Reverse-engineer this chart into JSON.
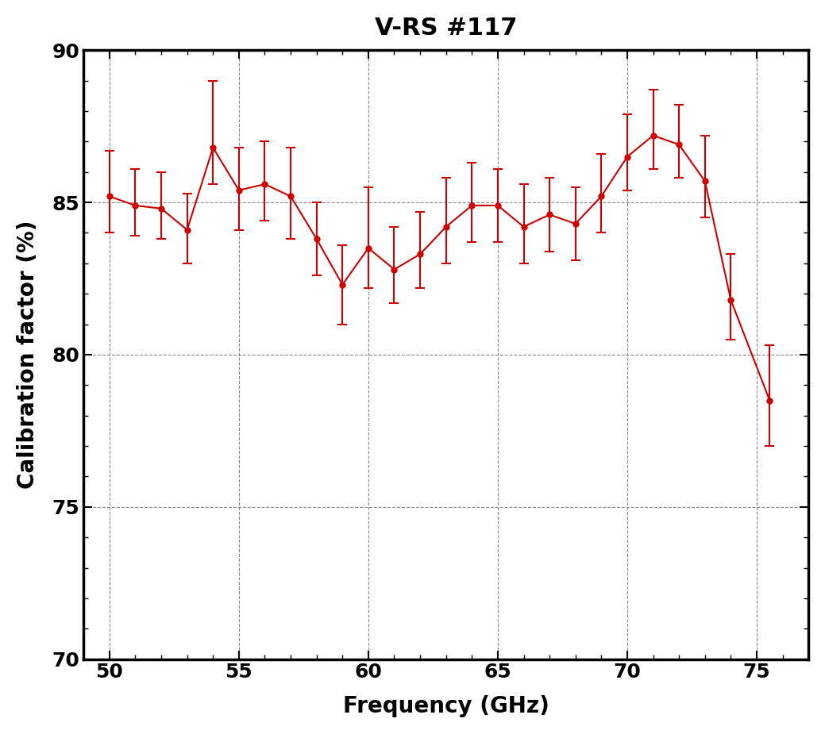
{
  "title": "V-RS #117",
  "xlabel": "Frequency (GHz)",
  "ylabel": "Calibration factor (%)",
  "xlim": [
    49,
    77
  ],
  "ylim": [
    70,
    90
  ],
  "xticks": [
    50,
    55,
    60,
    65,
    70,
    75
  ],
  "yticks": [
    70,
    75,
    80,
    85,
    90
  ],
  "x": [
    50,
    51,
    52,
    53,
    54,
    55,
    56,
    57,
    58,
    59,
    60,
    61,
    62,
    63,
    64,
    65,
    66,
    67,
    68,
    69,
    70,
    71,
    72,
    73,
    74,
    75.5
  ],
  "y": [
    85.2,
    84.9,
    84.8,
    84.1,
    86.8,
    85.4,
    85.6,
    85.2,
    83.8,
    82.3,
    83.5,
    82.8,
    83.3,
    84.2,
    84.9,
    84.9,
    84.2,
    84.6,
    84.3,
    85.2,
    86.5,
    87.2,
    86.9,
    85.7,
    81.8,
    78.5
  ],
  "yerr_lower": [
    1.2,
    1.0,
    1.0,
    1.1,
    1.2,
    1.3,
    1.2,
    1.4,
    1.2,
    1.3,
    1.3,
    1.1,
    1.1,
    1.2,
    1.2,
    1.2,
    1.2,
    1.2,
    1.2,
    1.2,
    1.1,
    1.1,
    1.1,
    1.2,
    1.3,
    1.5
  ],
  "yerr_upper": [
    1.5,
    1.2,
    1.2,
    1.2,
    2.2,
    1.4,
    1.4,
    1.6,
    1.2,
    1.3,
    2.0,
    1.4,
    1.4,
    1.6,
    1.4,
    1.2,
    1.4,
    1.2,
    1.2,
    1.4,
    1.4,
    1.5,
    1.3,
    1.5,
    1.5,
    1.8
  ],
  "line_color": "#cc0000",
  "marker": "o",
  "markersize": 5,
  "linewidth": 1.5,
  "grid_color": "#888888",
  "grid_linestyle": "--",
  "grid_linewidth": 0.8,
  "background_color": "#ffffff",
  "title_fontsize": 22,
  "label_fontsize": 20,
  "tick_fontsize": 18,
  "spine_linewidth": 2.5,
  "capsize": 4,
  "capthick": 1.5,
  "elinewidth": 1.5
}
